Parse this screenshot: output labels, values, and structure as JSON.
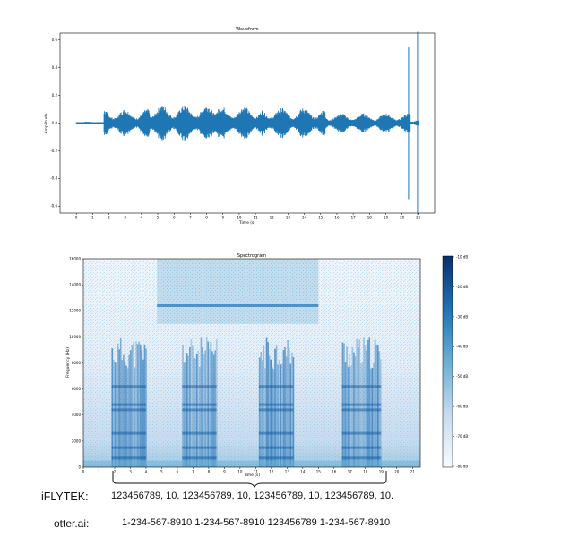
{
  "chart_data": [
    {
      "type": "line",
      "title": "Waveform",
      "xlabel": "Time (s)",
      "ylabel": "Amplitude",
      "xlim": [
        -1,
        22
      ],
      "ylim": [
        -0.65,
        0.65
      ],
      "xticks": [
        0,
        1,
        2,
        3,
        4,
        5,
        6,
        7,
        8,
        9,
        10,
        11,
        12,
        13,
        14,
        15,
        16,
        17,
        18,
        19,
        20,
        21
      ],
      "yticks": [
        0.6,
        0.4,
        0.2,
        0.0,
        -0.2,
        -0.4,
        -0.6
      ],
      "ytick_labels": [
        "0.6",
        "0.4",
        "0.2",
        "0.0",
        "-0.2",
        "-0.4",
        "-0.6"
      ],
      "color": "#1f77b4",
      "segments": [
        {
          "x": [
            0.0,
            1.7
          ],
          "amplitude": 0.01
        },
        {
          "x": [
            1.7,
            4.5
          ],
          "amplitude": 0.1
        },
        {
          "x": [
            4.5,
            8.5
          ],
          "amplitude": 0.13
        },
        {
          "x": [
            8.5,
            11.5
          ],
          "amplitude": 0.12
        },
        {
          "x": [
            11.5,
            15.3
          ],
          "amplitude": 0.11
        },
        {
          "x": [
            15.3,
            20.5
          ],
          "amplitude": 0.07
        },
        {
          "x": [
            20.5,
            21.0
          ],
          "amplitude": 0.03
        }
      ],
      "spikes": [
        {
          "x": 20.4,
          "y_min": -0.55,
          "y_max": 0.55
        },
        {
          "x": 20.95,
          "y_min": -0.66,
          "y_max": 0.66
        }
      ]
    },
    {
      "type": "heatmap",
      "title": "Spectrogram",
      "xlabel": "Time (s)",
      "ylabel": "Frequency (Hz)",
      "xlim": [
        0,
        21.5
      ],
      "ylim": [
        0,
        16000
      ],
      "xticks": [
        0,
        1,
        2,
        3,
        4,
        5,
        6,
        7,
        8,
        9,
        10,
        11,
        12,
        13,
        14,
        15,
        16,
        17,
        18,
        19,
        20,
        21
      ],
      "yticks": [
        0,
        2000,
        4000,
        6000,
        8000,
        10000,
        12000,
        14000,
        16000
      ],
      "colormap": "Blues",
      "colorbar_ticks": [
        "-10 dB",
        "-20 dB",
        "-30 dB",
        "-40 dB",
        "-50 dB",
        "-60 dB",
        "-70 dB",
        "-80 dB"
      ],
      "bursts": [
        {
          "x": [
            1.8,
            4.0
          ],
          "max_freq": 10000
        },
        {
          "x": [
            6.3,
            8.5
          ],
          "max_freq": 10000
        },
        {
          "x": [
            11.2,
            13.4
          ],
          "max_freq": 10000
        },
        {
          "x": [
            16.5,
            19.0
          ],
          "max_freq": 10000
        }
      ],
      "broadband_region": {
        "x": [
          4.7,
          15.0
        ],
        "freq": [
          11000,
          16000
        ]
      }
    }
  ],
  "captions": [
    {
      "label": "iFLYTEK:",
      "text": "123456789, 10, 123456789, 10, 123456789, 10, 123456789, 10."
    },
    {
      "label": "otter.ai:",
      "text": "1-234-567-8910 1-234-567-8910 123456789 1-234-567-8910"
    }
  ]
}
